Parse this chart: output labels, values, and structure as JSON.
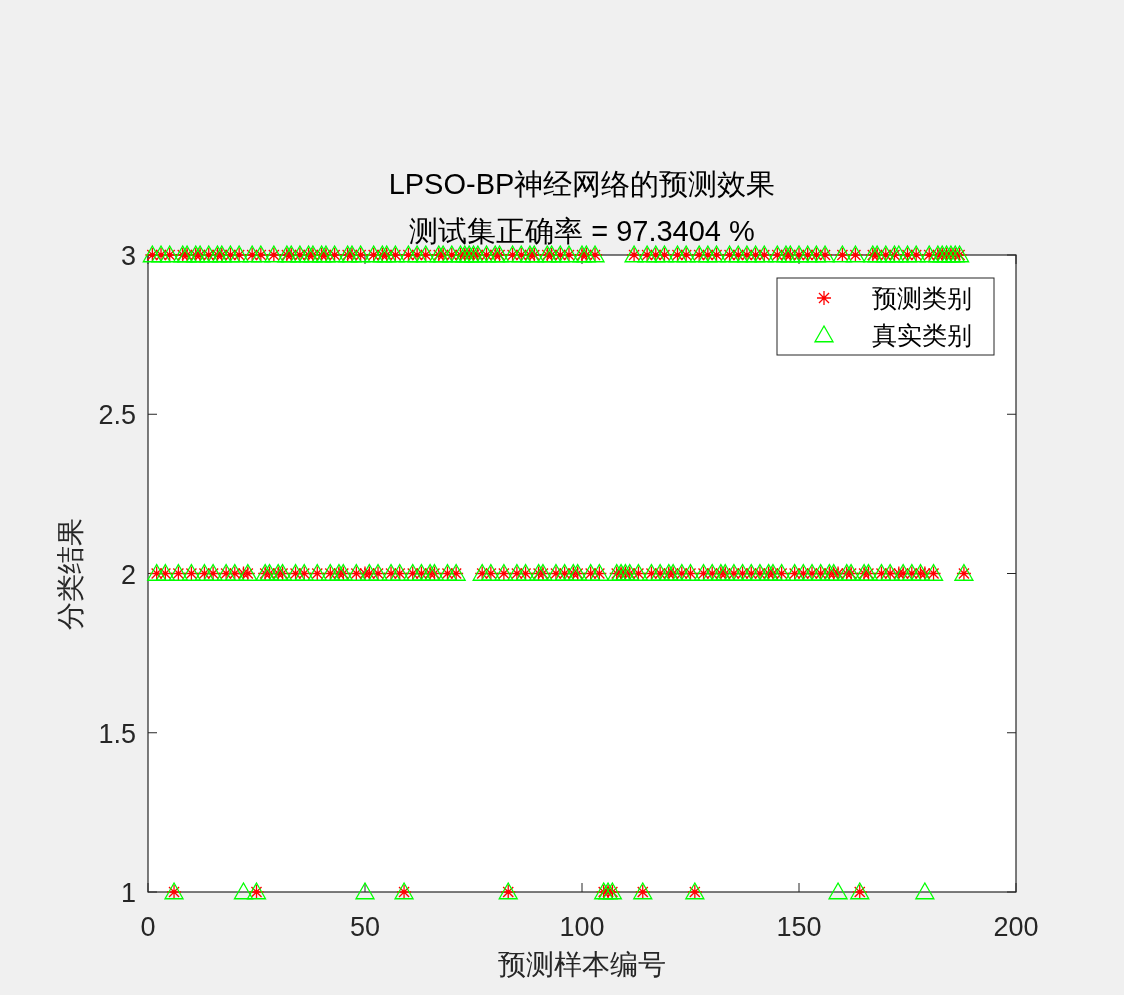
{
  "chart_data": {
    "type": "scatter",
    "title": "LPSO-BP神经网络的预测效果",
    "subtitle": "测试集正确率 = 97.3404 %",
    "xlabel": "预测样本编号",
    "ylabel": "分类结果",
    "x": [
      1,
      2,
      3,
      4,
      5,
      6,
      7,
      8,
      9,
      10,
      11,
      12,
      13,
      14,
      15,
      16,
      17,
      18,
      19,
      20,
      21,
      22,
      23,
      24,
      25,
      26,
      27,
      28,
      29,
      30,
      31,
      32,
      33,
      34,
      35,
      36,
      37,
      38,
      39,
      40,
      41,
      42,
      43,
      44,
      45,
      46,
      47,
      48,
      49,
      50,
      51,
      52,
      53,
      54,
      55,
      56,
      57,
      58,
      59,
      60,
      61,
      62,
      63,
      64,
      65,
      66,
      67,
      68,
      69,
      70,
      71,
      72,
      73,
      74,
      75,
      76,
      77,
      78,
      79,
      80,
      81,
      82,
      83,
      84,
      85,
      86,
      87,
      88,
      89,
      90,
      91,
      92,
      93,
      94,
      95,
      96,
      97,
      98,
      99,
      100,
      101,
      102,
      103,
      104,
      105,
      106,
      107,
      108,
      109,
      110,
      111,
      112,
      113,
      114,
      115,
      116,
      117,
      118,
      119,
      120,
      121,
      122,
      123,
      124,
      125,
      126,
      127,
      128,
      129,
      130,
      131,
      132,
      133,
      134,
      135,
      136,
      137,
      138,
      139,
      140,
      141,
      142,
      143,
      144,
      145,
      146,
      147,
      148,
      149,
      150,
      151,
      152,
      153,
      154,
      155,
      156,
      157,
      158,
      159,
      160,
      161,
      162,
      163,
      164,
      165,
      166,
      167,
      168,
      169,
      170,
      171,
      172,
      173,
      174,
      175,
      176,
      177,
      178,
      179,
      180,
      181,
      182,
      183,
      184,
      185,
      186,
      187,
      188
    ],
    "series": [
      {
        "name": "预测类别",
        "color": "#ff0000",
        "marker": "cross",
        "values": [
          3,
          2,
          3,
          2,
          3,
          1,
          2,
          3,
          3,
          2,
          3,
          3,
          2,
          3,
          2,
          3,
          3,
          2,
          3,
          2,
          3,
          2,
          2,
          3,
          1,
          3,
          2,
          2,
          3,
          2,
          2,
          3,
          3,
          2,
          3,
          2,
          3,
          3,
          2,
          3,
          3,
          2,
          3,
          2,
          2,
          3,
          3,
          2,
          3,
          2,
          2,
          3,
          2,
          3,
          3,
          2,
          3,
          2,
          1,
          3,
          2,
          3,
          2,
          3,
          2,
          2,
          3,
          3,
          2,
          3,
          2,
          3,
          3,
          3,
          3,
          3,
          2,
          3,
          2,
          3,
          3,
          2,
          1,
          3,
          2,
          3,
          2,
          3,
          3,
          2,
          2,
          3,
          3,
          2,
          3,
          2,
          3,
          2,
          2,
          3,
          3,
          2,
          3,
          2,
          1,
          1,
          1,
          2,
          2,
          2,
          2,
          3,
          2,
          1,
          3,
          2,
          3,
          2,
          3,
          2,
          2,
          3,
          2,
          3,
          2,
          1,
          3,
          2,
          3,
          2,
          3,
          2,
          2,
          3,
          2,
          3,
          2,
          3,
          2,
          3,
          2,
          3,
          2,
          2,
          3,
          2,
          3,
          3,
          2,
          3,
          2,
          3,
          2,
          3,
          2,
          3,
          2,
          2,
          2,
          3,
          2,
          2,
          3,
          1,
          2,
          2,
          3,
          3,
          2,
          3,
          2,
          3,
          2,
          2,
          3,
          2,
          3,
          2,
          2,
          3,
          2,
          3,
          3,
          3,
          3,
          3,
          3,
          2
        ]
      },
      {
        "name": "真实类别",
        "color": "#00ff00",
        "marker": "triangle",
        "values": [
          3,
          2,
          3,
          2,
          3,
          1,
          2,
          3,
          3,
          2,
          3,
          3,
          2,
          3,
          2,
          3,
          3,
          2,
          3,
          2,
          3,
          1,
          2,
          3,
          1,
          3,
          2,
          2,
          3,
          2,
          2,
          3,
          3,
          2,
          3,
          2,
          3,
          3,
          2,
          3,
          3,
          2,
          3,
          2,
          2,
          3,
          3,
          2,
          3,
          1,
          2,
          3,
          2,
          3,
          3,
          2,
          3,
          2,
          1,
          3,
          2,
          3,
          2,
          3,
          2,
          2,
          3,
          3,
          2,
          3,
          2,
          3,
          3,
          3,
          3,
          3,
          2,
          3,
          2,
          3,
          3,
          2,
          1,
          3,
          2,
          3,
          2,
          3,
          3,
          2,
          2,
          3,
          3,
          2,
          3,
          2,
          3,
          2,
          2,
          3,
          3,
          2,
          3,
          2,
          1,
          1,
          1,
          2,
          2,
          2,
          2,
          3,
          2,
          1,
          3,
          2,
          3,
          2,
          3,
          2,
          2,
          3,
          2,
          3,
          2,
          1,
          3,
          2,
          3,
          2,
          3,
          2,
          2,
          3,
          2,
          3,
          2,
          3,
          2,
          3,
          2,
          3,
          2,
          2,
          3,
          2,
          3,
          3,
          2,
          3,
          2,
          3,
          2,
          3,
          2,
          3,
          2,
          2,
          1,
          3,
          2,
          2,
          3,
          1,
          2,
          2,
          3,
          3,
          2,
          3,
          2,
          3,
          3,
          2,
          3,
          2,
          3,
          2,
          1,
          3,
          2,
          3,
          3,
          3,
          3,
          3,
          3,
          2
        ]
      }
    ],
    "xlim": [
      0,
      200
    ],
    "xticks": [
      0,
      50,
      100,
      150,
      200
    ],
    "ylim": [
      1,
      3
    ],
    "yticks": [
      1,
      1.5,
      2,
      2.5,
      3
    ],
    "grid": false,
    "legend": "top right"
  }
}
